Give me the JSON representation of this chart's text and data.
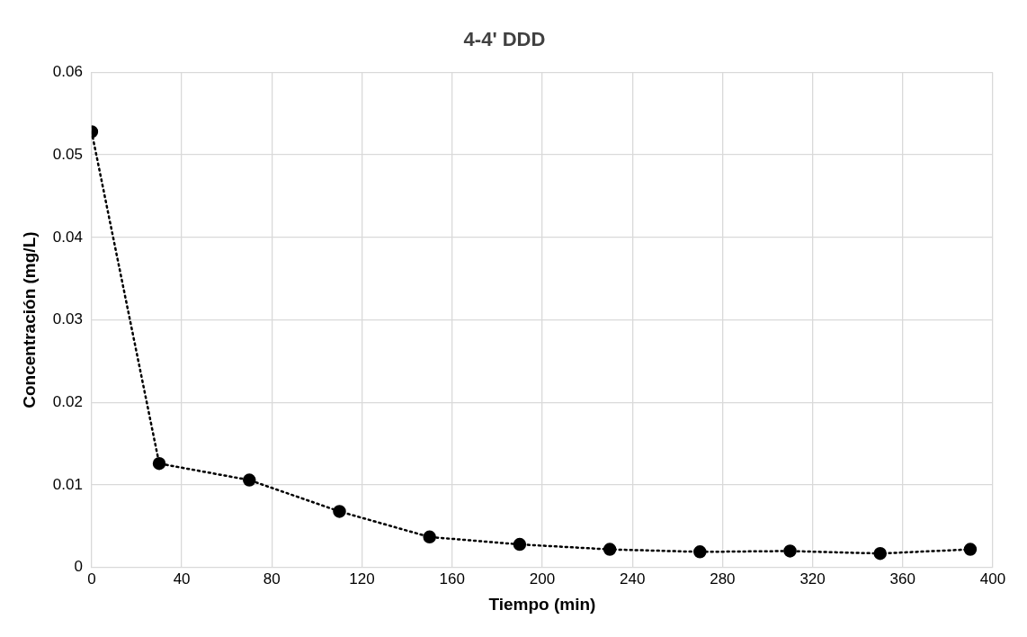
{
  "chart_data": {
    "type": "line",
    "title": "4-4' DDD",
    "xlabel": "Tiempo (min)",
    "ylabel": "Concentración (mg/L)",
    "x": [
      0,
      30,
      70,
      110,
      150,
      190,
      230,
      270,
      310,
      350,
      390
    ],
    "series": [
      {
        "color": "#000000",
        "values": [
          0.0528,
          0.0126,
          0.0106,
          0.0068,
          0.0037,
          0.0028,
          0.0022,
          0.0019,
          0.002,
          0.0017,
          0.0022
        ]
      }
    ],
    "xlim": [
      0,
      400
    ],
    "xticks": [
      0,
      40,
      80,
      120,
      160,
      200,
      240,
      280,
      320,
      360,
      400
    ],
    "ylim": [
      0,
      0.06
    ],
    "yticks": [
      0,
      0.01,
      0.02,
      0.03,
      0.04,
      0.05,
      0.06
    ],
    "grid": true,
    "legend": false,
    "marker": "circle",
    "line_style": "dotted"
  }
}
